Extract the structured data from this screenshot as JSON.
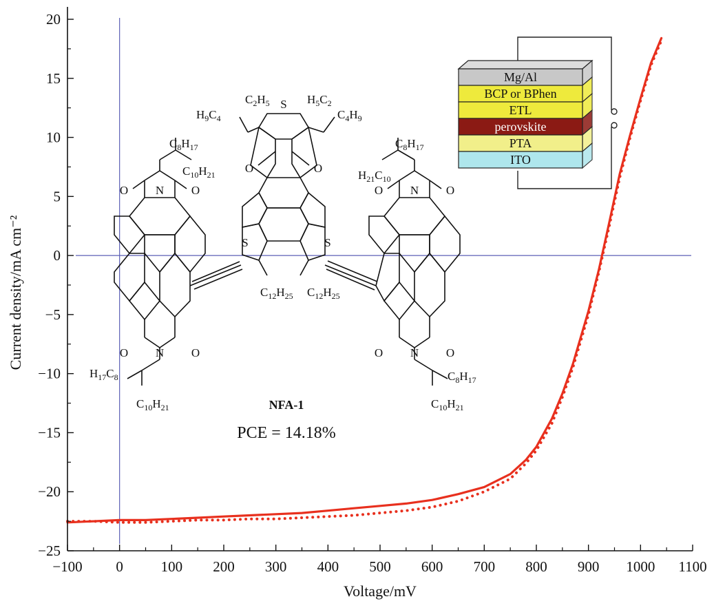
{
  "chart_data": {
    "type": "line",
    "xlabel": "Voltage/mV",
    "ylabel": "Current density/mA cm⁻²",
    "xlim": [
      -100,
      1100
    ],
    "ylim": [
      -25,
      20
    ],
    "x_ticks": [
      -100,
      0,
      100,
      200,
      300,
      400,
      500,
      600,
      700,
      800,
      900,
      1000,
      1100
    ],
    "y_ticks": [
      -25,
      -20,
      -15,
      -10,
      -5,
      0,
      5,
      10,
      15,
      20
    ],
    "x_tick_labels": [
      "−100",
      "0",
      "100",
      "200",
      "300",
      "400",
      "500",
      "600",
      "700",
      "800",
      "900",
      "1000",
      "1100"
    ],
    "y_tick_labels": [
      "−25",
      "−20",
      "−15",
      "−10",
      "−5",
      "0",
      "5",
      "10",
      "15",
      "20"
    ],
    "reference_lines": {
      "x": 0,
      "y": 0,
      "color": "#5b5fb5"
    },
    "series": [
      {
        "style": "solid",
        "color": "#e8301e",
        "x": [
          -100,
          -50,
          0,
          50,
          100,
          150,
          200,
          250,
          300,
          350,
          400,
          450,
          500,
          550,
          600,
          650,
          700,
          750,
          780,
          800,
          830,
          850,
          870,
          900,
          920,
          940,
          960,
          980,
          1000,
          1020,
          1040
        ],
        "y": [
          -22.6,
          -22.5,
          -22.4,
          -22.4,
          -22.3,
          -22.2,
          -22.1,
          -22.0,
          -21.9,
          -21.8,
          -21.6,
          -21.4,
          -21.2,
          -21.0,
          -20.7,
          -20.2,
          -19.6,
          -18.5,
          -17.3,
          -16.2,
          -13.8,
          -11.7,
          -9.2,
          -4.7,
          -1.2,
          2.8,
          6.9,
          10.2,
          13.3,
          16.3,
          18.4
        ]
      },
      {
        "style": "dotted",
        "color": "#e8301e",
        "x": [
          -100,
          -50,
          0,
          50,
          100,
          150,
          200,
          250,
          300,
          350,
          400,
          450,
          500,
          550,
          600,
          650,
          700,
          750,
          780,
          800,
          830,
          850,
          870,
          900,
          920,
          940,
          960,
          980,
          1000,
          1020,
          1040
        ],
        "y": [
          -22.5,
          -22.5,
          -22.6,
          -22.6,
          -22.5,
          -22.4,
          -22.4,
          -22.3,
          -22.3,
          -22.2,
          -22.1,
          -22.0,
          -21.8,
          -21.6,
          -21.3,
          -20.8,
          -20.0,
          -18.9,
          -17.6,
          -16.5,
          -14.2,
          -12.0,
          -9.5,
          -5.0,
          -1.4,
          2.5,
          6.6,
          10.0,
          13.1,
          16.1,
          18.2
        ]
      }
    ],
    "annotations": {
      "molecule_name": "NFA-1",
      "pce_text": "PCE = 14.18%",
      "device_layers": [
        "Mg/Al",
        "BCP or BPhen",
        "ETL",
        "perovskite",
        "PTA",
        "ITO"
      ],
      "device_layer_colors": [
        "#c8c8c8",
        "#eeea3c",
        "#eeea3c",
        "#8b1a14",
        "#f1ef8a",
        "#aee6ec"
      ]
    }
  }
}
